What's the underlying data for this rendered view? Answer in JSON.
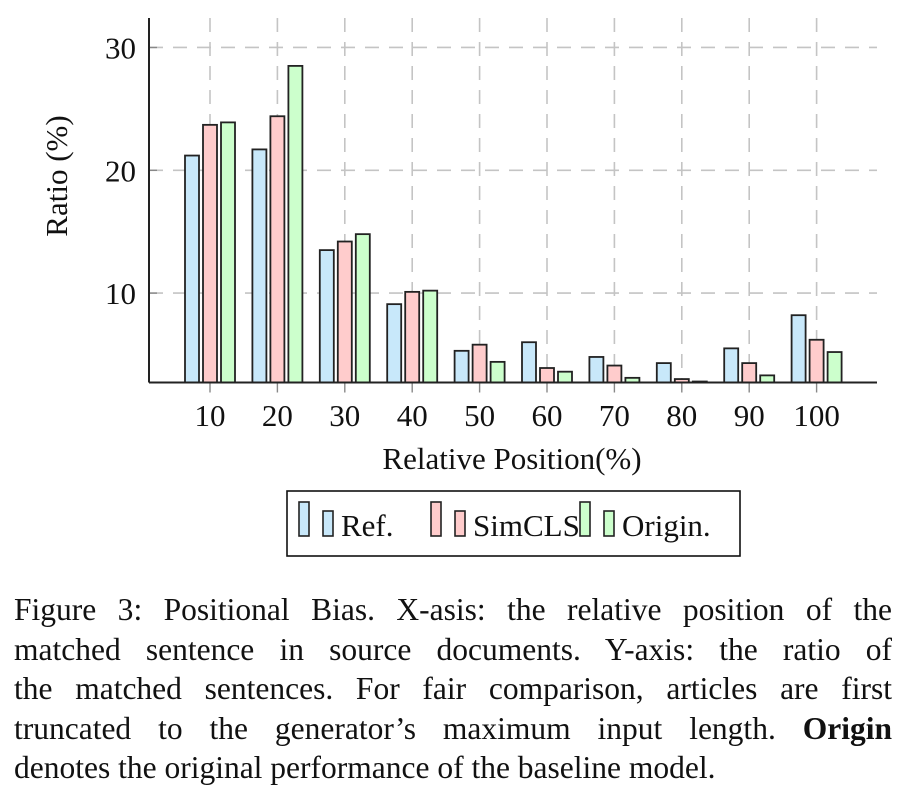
{
  "chart_data": {
    "type": "bar",
    "title": "",
    "xlabel": "Relative Position(%)",
    "ylabel": "Ratio (%)",
    "categories": [
      "10",
      "20",
      "30",
      "40",
      "50",
      "60",
      "70",
      "80",
      "90",
      "100"
    ],
    "series": [
      {
        "name": "Ref.",
        "color": "#c8e8fa",
        "values": [
          21.2,
          21.7,
          13.5,
          9.1,
          5.3,
          6.0,
          4.8,
          4.3,
          5.5,
          8.2
        ]
      },
      {
        "name": "SimCLS",
        "color": "#ffcccc",
        "values": [
          23.7,
          24.4,
          14.2,
          10.1,
          5.8,
          3.9,
          4.1,
          3.0,
          4.3,
          6.2
        ]
      },
      {
        "name": "Origin.",
        "color": "#ccffcc",
        "values": [
          23.9,
          28.5,
          14.8,
          10.2,
          4.4,
          3.6,
          3.1,
          2.8,
          3.3,
          5.2
        ]
      }
    ],
    "yticks": [
      10,
      20,
      30
    ],
    "ylim": [
      2.72,
      32.4
    ],
    "grid": true,
    "legend_position": "bottom"
  },
  "figure": {
    "caption_label": "Figure 3",
    "caption_lines": [
      {
        "pre": ": Positional Bias. X-asis: the relative position of the",
        "bold": "",
        "post": ""
      },
      {
        "pre": "matched sentence in source documents. Y-axis: the ratio of",
        "bold": "",
        "post": ""
      },
      {
        "pre": "the matched sentences. For fair comparison, articles are first",
        "bold": "",
        "post": ""
      },
      {
        "pre": "truncated to the generator’s maximum input length. ",
        "bold": "Origin",
        "post": ""
      },
      {
        "pre": "denotes the original performance of the baseline model.",
        "bold": "",
        "post": ""
      }
    ]
  }
}
